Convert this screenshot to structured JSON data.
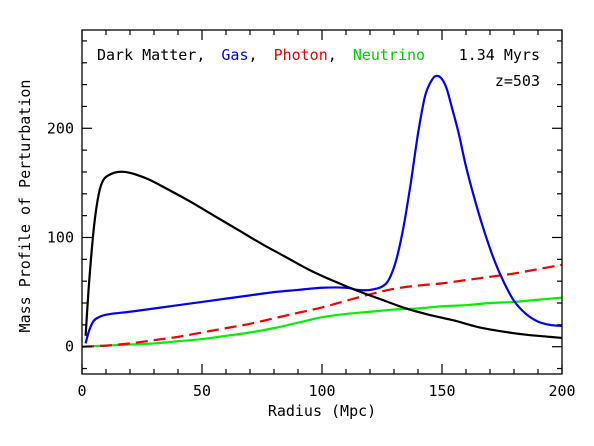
{
  "chart_data": {
    "type": "line",
    "xlabel": "Radius (Mpc)",
    "ylabel": "Mass Profile of Perturbation",
    "xlim": [
      0,
      200
    ],
    "ylim": [
      -25,
      290
    ],
    "x_ticks": [
      0,
      50,
      100,
      150,
      200
    ],
    "y_ticks": [
      0,
      100,
      200
    ],
    "legend_prefix": "Dark Matter,",
    "legend_placement": "top-left",
    "annotations": [
      "1.34 Myrs",
      "z=503"
    ],
    "grid": false,
    "series": [
      {
        "name": "Dark Matter",
        "color": "#000000",
        "dash": "solid",
        "x": [
          1.5,
          3,
          5,
          7,
          9,
          12,
          15,
          18,
          22,
          28,
          35,
          45,
          55,
          65,
          75,
          85,
          95,
          105,
          115,
          125,
          135,
          145,
          155,
          165,
          175,
          185,
          195,
          200
        ],
        "y": [
          10,
          60,
          110,
          140,
          153,
          158,
          160,
          160,
          158,
          153,
          145,
          133,
          120,
          107,
          94,
          82,
          70,
          60,
          51,
          43,
          35,
          29,
          24,
          18,
          14,
          11,
          9,
          8
        ]
      },
      {
        "name": "Gas",
        "color": "#0000ee",
        "dash": "solid",
        "x": [
          1.5,
          3,
          5,
          8,
          12,
          20,
          30,
          40,
          50,
          60,
          70,
          80,
          90,
          100,
          110,
          115,
          120,
          125,
          128,
          131,
          134,
          137,
          140,
          143,
          146,
          148,
          150,
          152,
          154,
          157,
          160,
          164,
          168,
          172,
          176,
          180,
          185,
          190,
          195,
          200
        ],
        "y": [
          3,
          15,
          24,
          28,
          30,
          32,
          35,
          38,
          41,
          44,
          47,
          50,
          52,
          54,
          54,
          52,
          52,
          55,
          62,
          80,
          110,
          150,
          195,
          230,
          245,
          248,
          245,
          236,
          220,
          195,
          165,
          132,
          103,
          78,
          58,
          42,
          30,
          23,
          20,
          19
        ]
      },
      {
        "name": "Photon",
        "color": "#ee0000",
        "dash": "dashed",
        "x": [
          0,
          10,
          20,
          30,
          40,
          50,
          60,
          70,
          80,
          90,
          100,
          110,
          120,
          130,
          140,
          150,
          160,
          170,
          180,
          190,
          200
        ],
        "y": [
          0,
          1,
          3,
          6,
          9,
          13,
          17,
          21,
          26,
          31,
          36,
          42,
          48,
          53,
          56,
          58,
          61,
          64,
          67,
          71,
          75
        ]
      },
      {
        "name": "Neutrino",
        "color": "#00ee00",
        "dash": "solid",
        "x": [
          0,
          10,
          20,
          30,
          40,
          50,
          60,
          70,
          80,
          90,
          100,
          110,
          120,
          130,
          140,
          150,
          160,
          170,
          180,
          190,
          200
        ],
        "y": [
          0,
          1,
          2,
          3,
          5,
          7,
          10,
          13,
          17,
          22,
          27,
          30,
          32,
          34,
          35,
          37,
          38,
          40,
          41,
          43,
          45
        ]
      }
    ]
  }
}
